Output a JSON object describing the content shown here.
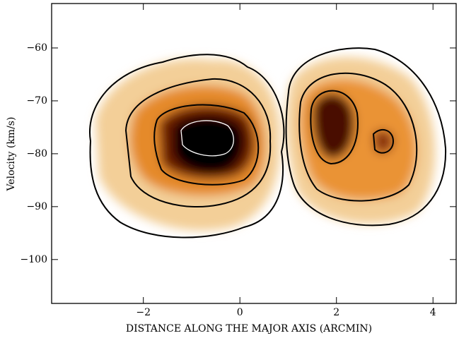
{
  "chart_data": {
    "type": "image",
    "xlabel": "DISTANCE ALONG THE MAJOR AXIS (ARCMIN)",
    "ylabel": "Velocity (km/s)",
    "xlim": [
      -3.9,
      4.48
    ],
    "ylim": [
      -108.3,
      -51.6
    ],
    "xticks": [
      {
        "value": -2,
        "label": "−2"
      },
      0,
      2,
      4
    ],
    "yticks": [
      {
        "value": -60,
        "label": "−60"
      },
      {
        "value": -70,
        "label": "−70"
      },
      {
        "value": -80,
        "label": "−80"
      },
      {
        "value": -90,
        "label": "−90"
      },
      {
        "value": -100,
        "label": "−100"
      }
    ]
  }
}
